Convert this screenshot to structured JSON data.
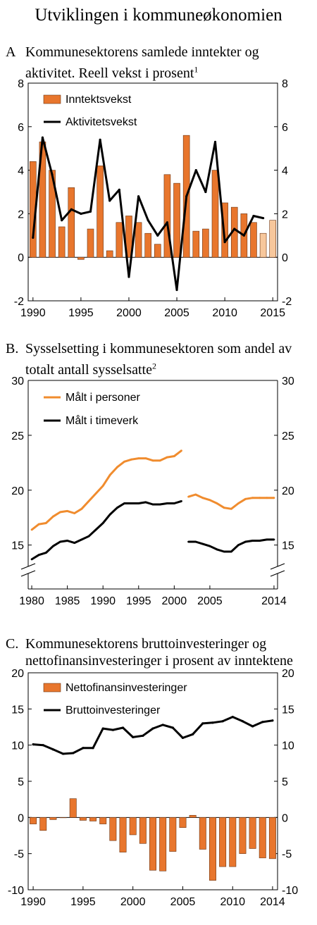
{
  "main_title": "Utviklingen i kommuneøkonomien",
  "panels": {
    "a": {
      "letter": "A",
      "title_line1": "Kommunesektorens samlede inntekter og",
      "title_line2": "aktivitet. Reell vekst i prosent",
      "footnote": "1"
    },
    "b": {
      "letter": "B.",
      "title_line1": "Sysselsetting i kommunesektoren som andel av",
      "title_line2": "totalt antall sysselsatte",
      "footnote": "2"
    },
    "c": {
      "letter": "C.",
      "title_line1": "Kommunesektorens bruttoinvesteringer og",
      "title_line2": "nettofinansinvesteringer i prosent av inntektene"
    }
  },
  "colors": {
    "orange": "#E8762D",
    "orange_light": "#F7C79C",
    "line": "#000000",
    "orange_line": "#F08C2E"
  },
  "chart_data": [
    {
      "type": "bar+line",
      "ylim": [
        -2,
        8
      ],
      "yticks": [
        -2,
        0,
        2,
        4,
        6,
        8
      ],
      "xlim": [
        1989.5,
        2015.5
      ],
      "xticks": [
        1990,
        1995,
        2000,
        2005,
        2010,
        2015
      ],
      "legend": {
        "position": "top-left"
      },
      "series": [
        {
          "name": "Inntektsvekst",
          "kind": "bar",
          "x": [
            1990,
            1991,
            1992,
            1993,
            1994,
            1995,
            1996,
            1997,
            1998,
            1999,
            2000,
            2001,
            2002,
            2003,
            2004,
            2005,
            2006,
            2007,
            2008,
            2009,
            2010,
            2011,
            2012,
            2013,
            2014,
            2015
          ],
          "values": [
            4.4,
            5.3,
            4.0,
            1.4,
            3.2,
            -0.1,
            1.3,
            4.2,
            0.3,
            1.6,
            1.9,
            1.6,
            1.1,
            0.6,
            3.8,
            3.4,
            5.6,
            1.2,
            1.3,
            4.0,
            2.5,
            2.3,
            2.0,
            1.6,
            1.1,
            1.7
          ],
          "projected_from": 2014
        },
        {
          "name": "Aktivitetsvekst",
          "kind": "line",
          "x": [
            1990,
            1991,
            1992,
            1993,
            1994,
            1995,
            1996,
            1997,
            1998,
            1999,
            2000,
            2001,
            2002,
            2003,
            2004,
            2005,
            2006,
            2007,
            2008,
            2009,
            2010,
            2011,
            2012,
            2013,
            2014
          ],
          "values": [
            0.9,
            5.5,
            3.8,
            1.7,
            2.2,
            2.0,
            2.1,
            5.4,
            2.6,
            3.1,
            -0.9,
            2.8,
            1.7,
            1.0,
            1.6,
            -1.5,
            2.8,
            4.0,
            3.0,
            5.3,
            0.7,
            1.3,
            1.0,
            1.9,
            1.8
          ]
        }
      ]
    },
    {
      "type": "line",
      "ylim": [
        11,
        30
      ],
      "yticks": [
        15,
        20,
        25,
        30
      ],
      "xlim": [
        1979.5,
        2014.5
      ],
      "xtick_labels": [
        {
          "x": 1980,
          "label": "1980"
        },
        {
          "x": 1985,
          "label": "1985"
        },
        {
          "x": 1990,
          "label": "1990"
        },
        {
          "x": 1995,
          "label": "1995"
        },
        {
          "x": 2000,
          "label": "2000"
        },
        {
          "x": 2005,
          "label": "2005"
        },
        {
          "x": 2014,
          "label": "2014"
        }
      ],
      "axis_break": true,
      "legend": {
        "position": "top-left"
      },
      "series": [
        {
          "name": "Målt i personer",
          "color_key": "orange_line",
          "segments": [
            {
              "x": [
                1980,
                1981,
                1982,
                1983,
                1984,
                1985,
                1986,
                1987,
                1988,
                1989,
                1990,
                1991,
                1992,
                1993,
                1994,
                1995,
                1996,
                1997,
                1998,
                1999,
                2000,
                2001
              ],
              "y": [
                16.4,
                16.9,
                17.0,
                17.6,
                18.0,
                18.1,
                17.9,
                18.3,
                19.0,
                19.7,
                20.4,
                21.4,
                22.1,
                22.6,
                22.8,
                22.9,
                22.9,
                22.7,
                22.7,
                23.0,
                23.1,
                23.6
              ]
            },
            {
              "x": [
                2002,
                2003,
                2004,
                2005,
                2006,
                2007,
                2008,
                2009,
                2010,
                2011,
                2012,
                2013,
                2014
              ],
              "y": [
                19.4,
                19.6,
                19.3,
                19.1,
                18.8,
                18.4,
                18.3,
                18.8,
                19.2,
                19.3,
                19.3,
                19.3,
                19.3
              ]
            }
          ]
        },
        {
          "name": "Målt i timeverk",
          "color_key": "line",
          "segments": [
            {
              "x": [
                1980,
                1981,
                1982,
                1983,
                1984,
                1985,
                1986,
                1987,
                1988,
                1989,
                1990,
                1991,
                1992,
                1993,
                1994,
                1995,
                1996,
                1997,
                1998,
                1999,
                2000,
                2001
              ],
              "y": [
                13.7,
                14.1,
                14.3,
                14.9,
                15.3,
                15.4,
                15.2,
                15.5,
                15.8,
                16.4,
                17.0,
                17.8,
                18.4,
                18.8,
                18.8,
                18.8,
                18.9,
                18.7,
                18.7,
                18.8,
                18.8,
                19.0
              ]
            },
            {
              "x": [
                2002,
                2003,
                2004,
                2005,
                2006,
                2007,
                2008,
                2009,
                2010,
                2011,
                2012,
                2013,
                2014
              ],
              "y": [
                15.3,
                15.3,
                15.1,
                14.9,
                14.6,
                14.4,
                14.4,
                15.0,
                15.3,
                15.4,
                15.4,
                15.5,
                15.5
              ]
            }
          ]
        }
      ]
    },
    {
      "type": "bar+line",
      "ylim": [
        -10,
        20
      ],
      "yticks": [
        -10,
        -5,
        0,
        5,
        10,
        15,
        20
      ],
      "xlim": [
        1989.5,
        2014.5
      ],
      "xticks": [
        1990,
        1995,
        2000,
        2005,
        2010,
        2014
      ],
      "legend": {
        "position": "top-left"
      },
      "series": [
        {
          "name": "Nettofinansinvesteringer",
          "kind": "bar",
          "x": [
            1990,
            1991,
            1992,
            1993,
            1994,
            1995,
            1996,
            1997,
            1998,
            1999,
            2000,
            2001,
            2002,
            2003,
            2004,
            2005,
            2006,
            2007,
            2008,
            2009,
            2010,
            2011,
            2012,
            2013,
            2014
          ],
          "values": [
            -0.9,
            -1.8,
            -0.3,
            0.0,
            2.6,
            -0.4,
            -0.5,
            -0.9,
            -3.2,
            -4.8,
            -2.4,
            -3.6,
            -7.3,
            -7.4,
            -4.7,
            -1.4,
            0.3,
            -4.4,
            -8.7,
            -6.8,
            -6.8,
            -5.0,
            -4.3,
            -5.6,
            -5.7
          ]
        },
        {
          "name": "Bruttoinvesteringer",
          "kind": "line",
          "x": [
            1990,
            1991,
            1992,
            1993,
            1994,
            1995,
            1996,
            1997,
            1998,
            1999,
            2000,
            2001,
            2002,
            2003,
            2004,
            2005,
            2006,
            2007,
            2008,
            2009,
            2010,
            2011,
            2012,
            2013,
            2014
          ],
          "values": [
            10.1,
            10.0,
            9.4,
            8.8,
            8.9,
            9.6,
            9.6,
            12.3,
            12.1,
            12.4,
            11.1,
            11.3,
            12.3,
            12.8,
            12.4,
            11.0,
            11.5,
            13.0,
            13.1,
            13.3,
            13.9,
            13.3,
            12.6,
            13.2,
            13.4
          ]
        }
      ]
    }
  ]
}
